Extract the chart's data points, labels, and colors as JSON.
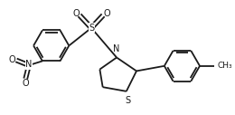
{
  "bg_color": "#ffffff",
  "line_color": "#1a1a1a",
  "lw": 1.3,
  "figsize": [
    2.6,
    1.27
  ],
  "dpi": 100,
  "xlim": [
    -2.7,
    2.7
  ],
  "ylim": [
    -1.4,
    1.2
  ]
}
